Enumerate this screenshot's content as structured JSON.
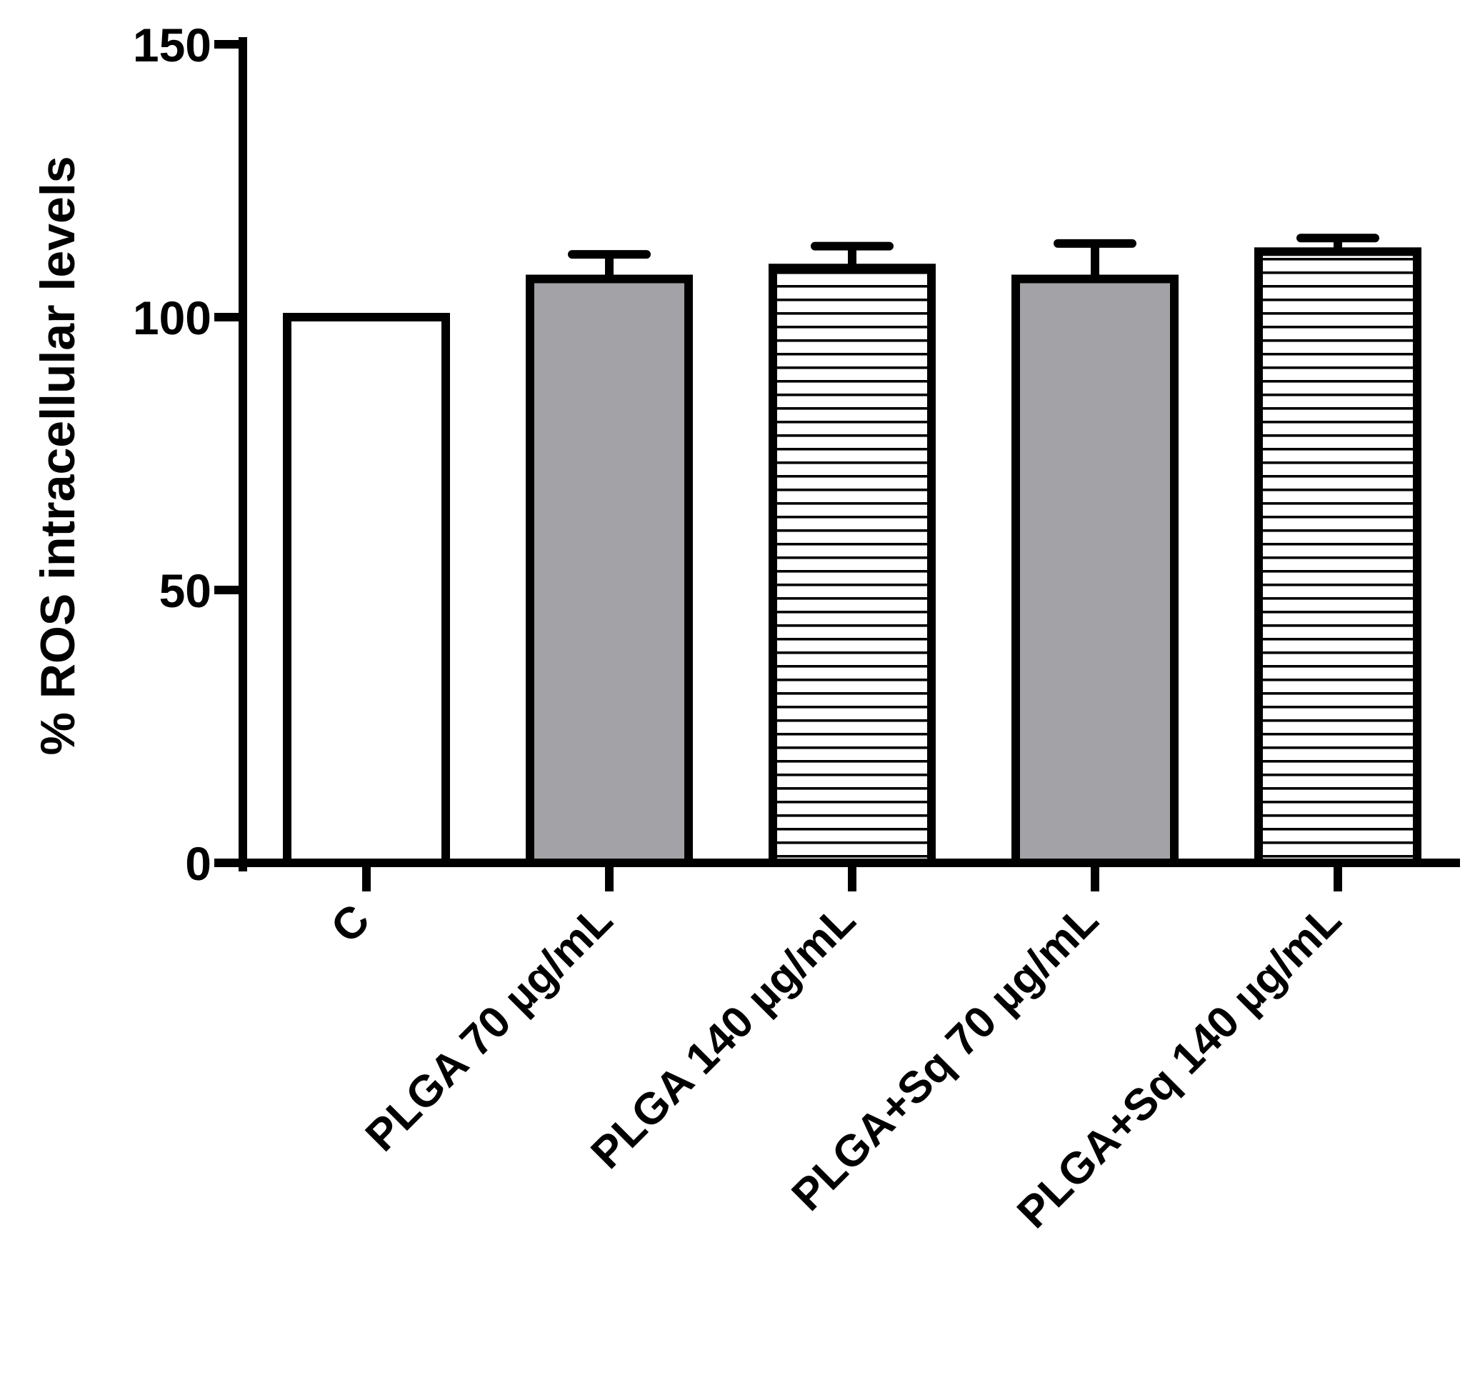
{
  "chart_data": {
    "type": "bar",
    "title": "",
    "xlabel": "",
    "ylabel": "% ROS intracellular levels",
    "ylim": [
      0,
      150
    ],
    "yticks": [
      0,
      50,
      100,
      150
    ],
    "grid": false,
    "legend": "none",
    "categories": [
      "C",
      "PLGA 70 µg/mL",
      "PLGA 140 µg/mL",
      "PLGA+Sq 70 µg/mL",
      "PLGA+Sq 140 µg/mL"
    ],
    "values": [
      100,
      107,
      109,
      107,
      112
    ],
    "error_upper": [
      0,
      4.5,
      4,
      6.5,
      2.5
    ],
    "bar_fills": [
      "white",
      "gray",
      "horizontal-stripes",
      "gray",
      "horizontal-stripes"
    ],
    "colors": {
      "stroke": "#000000",
      "white_fill": "#ffffff",
      "gray_fill": "#a3a2a7",
      "stripe": "#000000"
    }
  }
}
